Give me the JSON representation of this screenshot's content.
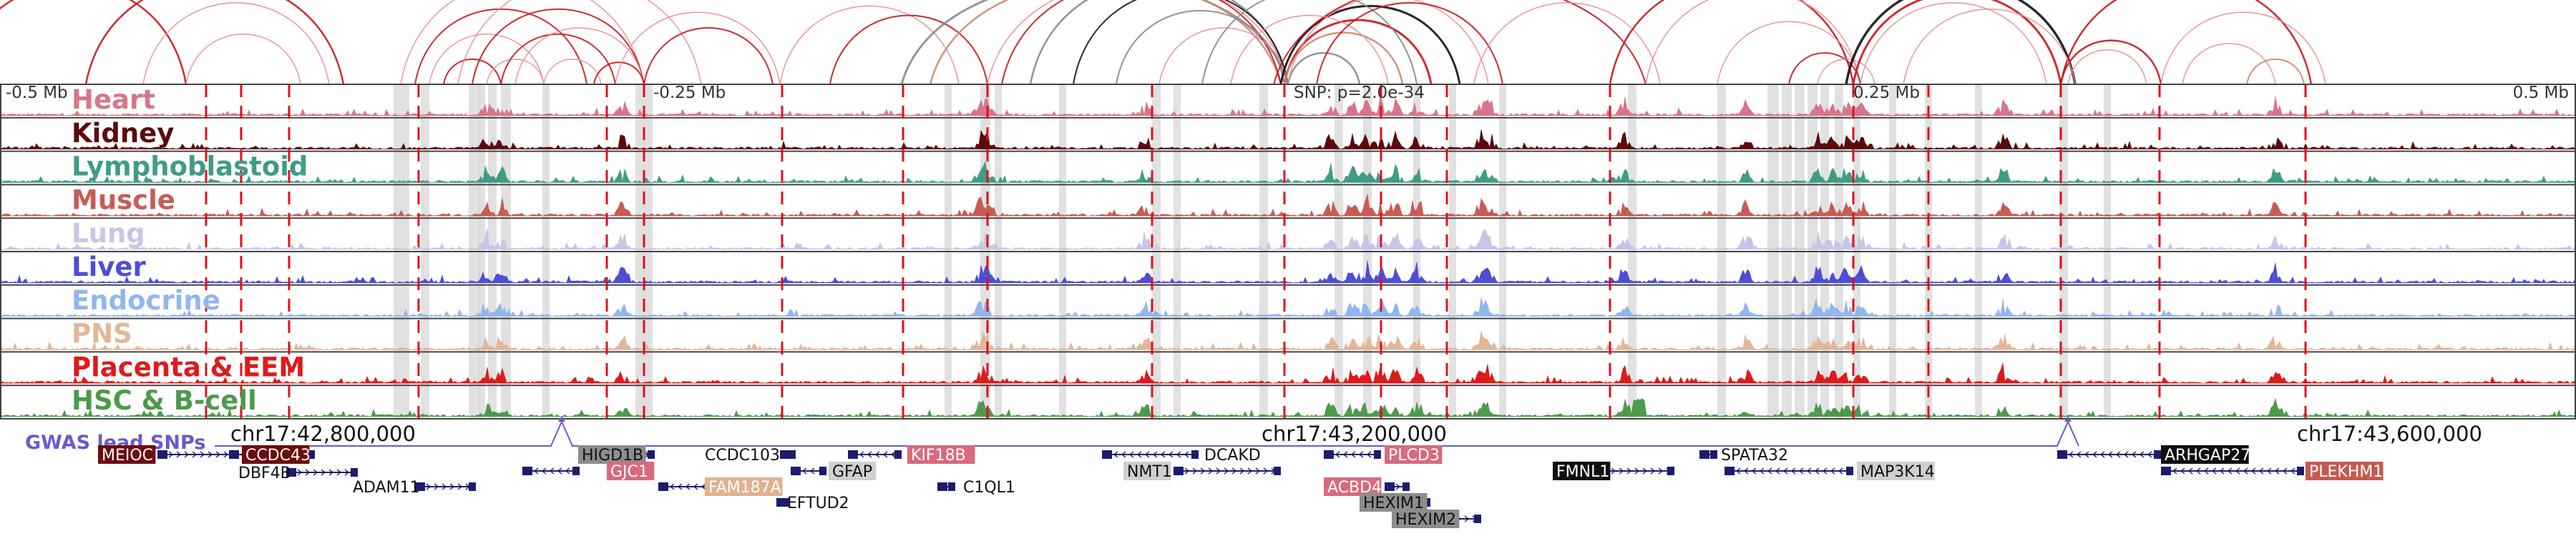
{
  "axis": {
    "left_label": "-0.5 Mb",
    "left_mid_label": "-0.25 Mb",
    "center_label": "SNP: p=2.0e-34",
    "right_mid_label": "0.25 Mb",
    "right_label": "0.5 Mb"
  },
  "tracks": [
    {
      "name": "Heart",
      "color": "#d8758a"
    },
    {
      "name": "Kidney",
      "color": "#5b0a0a"
    },
    {
      "name": "Lymphoblastoid",
      "color": "#3f9c86"
    },
    {
      "name": "Muscle",
      "color": "#c85c55"
    },
    {
      "name": "Lung",
      "color": "#c9c5e6"
    },
    {
      "name": "Liver",
      "color": "#4e4ed6"
    },
    {
      "name": "Endocrine",
      "color": "#92b6ee"
    },
    {
      "name": "PNS",
      "color": "#e2b798"
    },
    {
      "name": "Placenta & EEM",
      "color": "#dd1b1b"
    },
    {
      "name": "HSC & B-cell",
      "color": "#4c9a4c"
    }
  ],
  "gwas": {
    "label": "GWAS lead SNPs",
    "color": "#6a5acd"
  },
  "coords": {
    "left": "chr17:42,800,000",
    "center": "chr17:43,200,000",
    "right": "chr17:43,600,000"
  },
  "genes": [
    {
      "name": "MEIOC",
      "style": "dark-red"
    },
    {
      "name": "CCDC43",
      "style": "dark-red"
    },
    {
      "name": "DBF4B",
      "style": "plain"
    },
    {
      "name": "ADAM11",
      "style": "plain"
    },
    {
      "name": "HIGD1B",
      "style": "gray"
    },
    {
      "name": "GJC1",
      "style": "pink"
    },
    {
      "name": "CCDC103",
      "style": "plain"
    },
    {
      "name": "FAM187A",
      "style": "tan"
    },
    {
      "name": "GFAP",
      "style": "lightgray"
    },
    {
      "name": "EFTUD2",
      "style": "plain"
    },
    {
      "name": "KIF18B",
      "style": "pink"
    },
    {
      "name": "C1QL1",
      "style": "plain"
    },
    {
      "name": "DCAKD",
      "style": "plain"
    },
    {
      "name": "NMT1",
      "style": "lightgray"
    },
    {
      "name": "PLCD3",
      "style": "pink"
    },
    {
      "name": "ACBD4",
      "style": "pink"
    },
    {
      "name": "HEXIM1",
      "style": "gray"
    },
    {
      "name": "HEXIM2",
      "style": "gray"
    },
    {
      "name": "FMNL1",
      "style": "black"
    },
    {
      "name": "SPATA32",
      "style": "plain"
    },
    {
      "name": "MAP3K14",
      "style": "lightgray"
    },
    {
      "name": "ARHGAP27",
      "style": "black"
    },
    {
      "name": "PLEKHM1",
      "style": "salmon"
    }
  ],
  "colors": {
    "arc_red": "#c4161c",
    "arc_pink": "#e88a93",
    "arc_black": "#111111",
    "arc_gray": "#8a8a8a",
    "arc_tan": "#c98a6b",
    "dash_line": "#e0101b",
    "shade": "#d9d9d9",
    "gene_strand": "#1c1c6e"
  }
}
